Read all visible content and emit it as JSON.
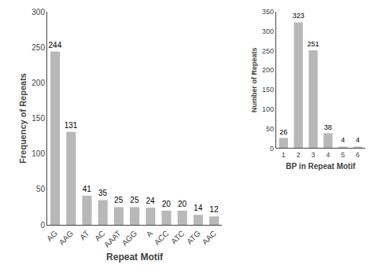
{
  "chart_data": [
    {
      "type": "bar",
      "categories": [
        "AG",
        "AAG",
        "AT",
        "AC",
        "AAAT",
        "AGG",
        "A",
        "ACC",
        "ATC",
        "ATG",
        "AAC"
      ],
      "values": [
        244,
        131,
        41,
        35,
        25,
        25,
        24,
        20,
        20,
        14,
        12
      ],
      "ylim": [
        0,
        300
      ],
      "yticks": [
        0,
        50,
        100,
        150,
        200,
        250,
        300
      ],
      "xlabel": "Repeat Motif",
      "ylabel": "Frequency of Repeats",
      "color": "#b8b8b8",
      "data_labels": true,
      "grid": false
    },
    {
      "type": "bar",
      "categories": [
        "1",
        "2",
        "3",
        "4",
        "5",
        "6"
      ],
      "values": [
        26,
        323,
        251,
        38,
        4,
        4
      ],
      "ylim": [
        0,
        350
      ],
      "yticks": [
        0,
        50,
        100,
        150,
        200,
        250,
        300,
        350
      ],
      "xlabel": "BP in Repeat Motif",
      "ylabel": "Number of Repeats",
      "color": "#b8b8b8",
      "data_labels": true,
      "grid": false
    }
  ]
}
